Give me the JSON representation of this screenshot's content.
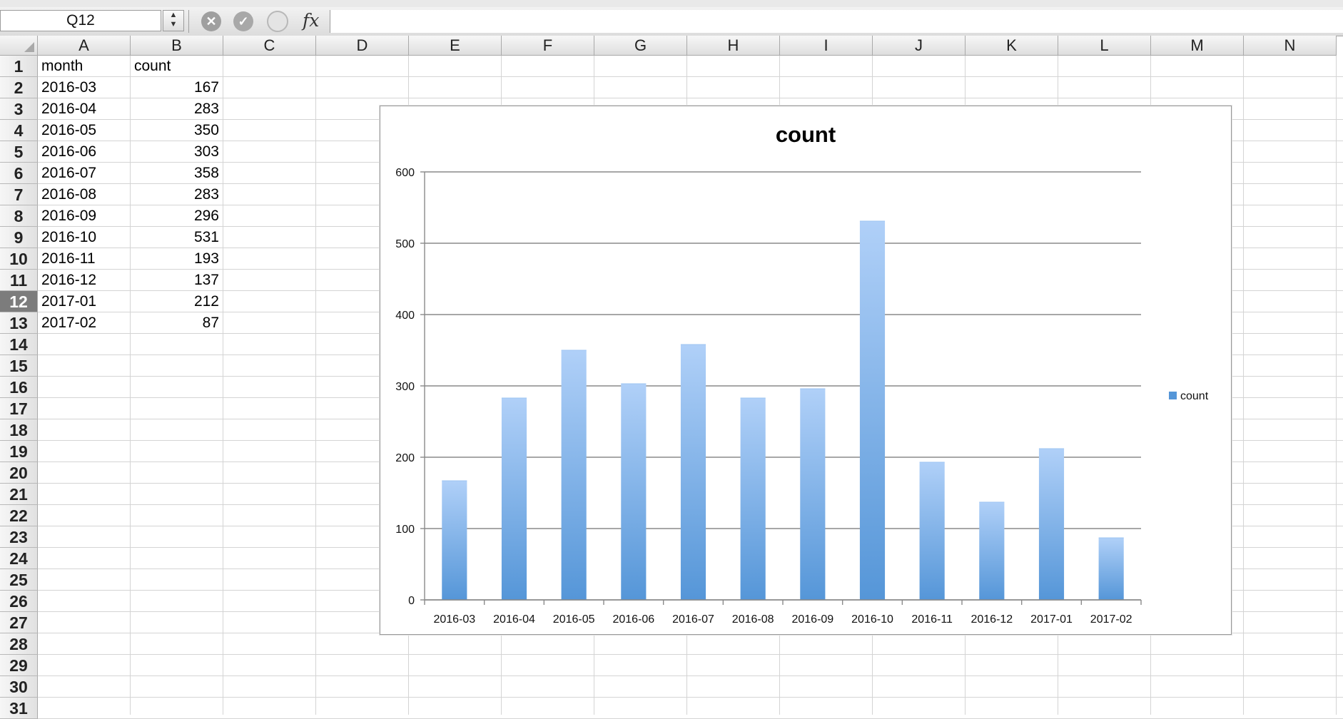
{
  "formula_bar": {
    "name_box": "Q12",
    "stepper": "▲\n▼",
    "cancel_icon": "✕",
    "enter_icon": "✓",
    "fx": "fx",
    "formula": ""
  },
  "sheet": {
    "columns": [
      "A",
      "B",
      "C",
      "D",
      "E",
      "F",
      "G",
      "H",
      "I",
      "J",
      "K",
      "L",
      "M",
      "N"
    ],
    "rows": [
      "1",
      "2",
      "3",
      "4",
      "5",
      "6",
      "7",
      "8",
      "9",
      "10",
      "11",
      "12",
      "13",
      "14",
      "15",
      "16",
      "17",
      "18",
      "19",
      "20",
      "21",
      "22",
      "23",
      "24",
      "25",
      "26",
      "27",
      "28",
      "29",
      "30",
      "31"
    ],
    "active_row": "12",
    "header_cells": [
      "month",
      "count"
    ],
    "data_rows": [
      {
        "month": "2016-03",
        "count": "167"
      },
      {
        "month": "2016-04",
        "count": "283"
      },
      {
        "month": "2016-05",
        "count": "350"
      },
      {
        "month": "2016-06",
        "count": "303"
      },
      {
        "month": "2016-07",
        "count": "358"
      },
      {
        "month": "2016-08",
        "count": "283"
      },
      {
        "month": "2016-09",
        "count": "296"
      },
      {
        "month": "2016-10",
        "count": "531"
      },
      {
        "month": "2016-11",
        "count": "193"
      },
      {
        "month": "2016-12",
        "count": "137"
      },
      {
        "month": "2017-01",
        "count": "212"
      },
      {
        "month": "2017-02",
        "count": "87"
      }
    ]
  },
  "chart_data": {
    "type": "bar",
    "title": "count",
    "categories": [
      "2016-03",
      "2016-04",
      "2016-05",
      "2016-06",
      "2016-07",
      "2016-08",
      "2016-09",
      "2016-10",
      "2016-11",
      "2016-12",
      "2017-01",
      "2017-02"
    ],
    "series": [
      {
        "name": "count",
        "values": [
          167,
          283,
          350,
          303,
          358,
          283,
          296,
          531,
          193,
          137,
          212,
          87
        ]
      }
    ],
    "ylim": [
      0,
      600
    ],
    "yticks": [
      0,
      100,
      200,
      300,
      400,
      500,
      600
    ],
    "grid": true,
    "legend": "right",
    "bar_color_top": "#b0d0f8",
    "bar_color_bottom": "#5596d8"
  }
}
